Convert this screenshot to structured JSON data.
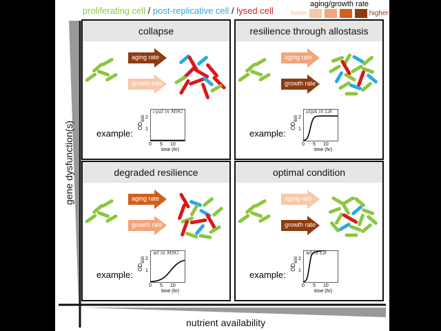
{
  "legend": {
    "cell_types": [
      {
        "label": "proliferating cell",
        "color": "#8cc63f"
      },
      {
        "label": "post-replicative cell",
        "color": "#29abe2"
      },
      {
        "label": "lysed cell",
        "color": "#d7191c"
      }
    ],
    "separator": " / ",
    "rate_title": "aging/growth rate",
    "rate_low": "lower",
    "rate_high": "higher",
    "rate_colors": [
      "#f8c8a8",
      "#f2a47a",
      "#d0601c",
      "#8c3c10"
    ]
  },
  "axes": {
    "y_label": "gene dysfunction(s)",
    "x_label": "nutrient availability"
  },
  "panels": [
    {
      "title": "collapse",
      "aging_label": "aging rate",
      "growth_label": "growth rate",
      "aging_level": 4,
      "growth_level": 1,
      "example_label": "example:",
      "chart_title": "cyaI in M9G",
      "curve": "collapse"
    },
    {
      "title": "resilience through allostasis",
      "aging_label": "aging rate",
      "growth_label": "growth rate",
      "aging_level": 2,
      "growth_level": 4,
      "example_label": "example:",
      "chart_title": "atpA in LB",
      "curve": "allostasis"
    },
    {
      "title": "degraded resilience",
      "aging_label": "aging rate",
      "growth_label": "growth rate",
      "aging_level": 3,
      "growth_level": 2,
      "example_label": "example:",
      "chart_title": "wt in M9G",
      "curve": "degraded"
    },
    {
      "title": "optimal condition",
      "aging_label": "aging rate",
      "growth_label": "growth rate",
      "aging_level": 1,
      "growth_level": 4,
      "example_label": "example:",
      "chart_title": "wt in LB",
      "curve": "optimal"
    }
  ],
  "mini_chart": {
    "ylabel": "OD",
    "ylabel_sub": "600",
    "xlabel": "time (hr)",
    "xticks": [
      "0",
      "5",
      "10"
    ],
    "yticks": [
      "1",
      "2"
    ],
    "xlim": [
      0,
      16
    ],
    "ylim": [
      0,
      2.7
    ]
  }
}
